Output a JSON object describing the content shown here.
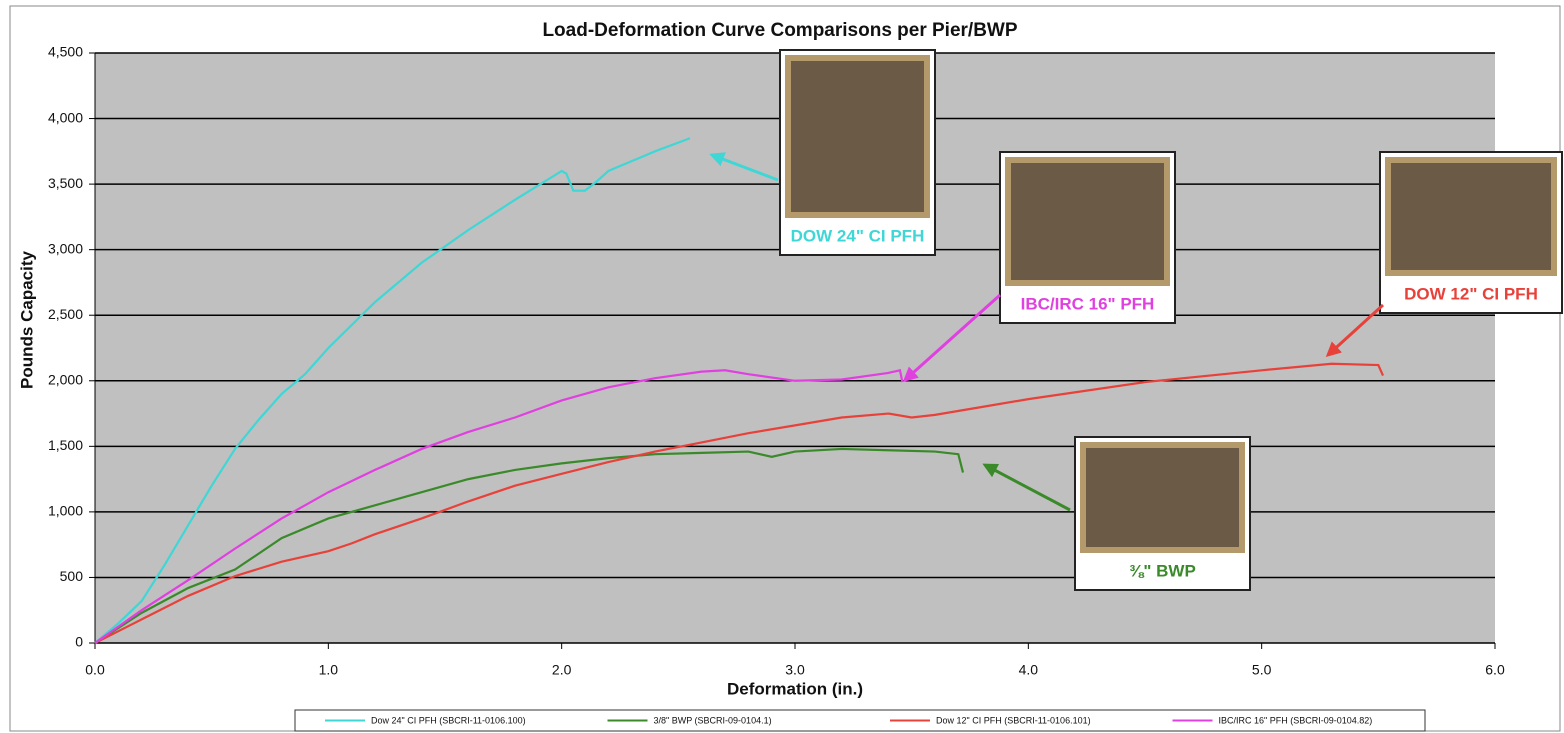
{
  "chart_data": {
    "type": "line",
    "title": "Load-Deformation Curve Comparisons per Pier/BWP",
    "x_label": "Deformation (in.)",
    "y_label": "Pounds Capacity",
    "xlim": [
      0,
      6
    ],
    "xticks": [
      {
        "value": 0,
        "label": "0.0"
      },
      {
        "value": 1,
        "label": "1.0"
      },
      {
        "value": 2,
        "label": "2.0"
      },
      {
        "value": 3,
        "label": "3.0"
      },
      {
        "value": 4,
        "label": "4.0"
      },
      {
        "value": 5,
        "label": "5.0"
      },
      {
        "value": 6,
        "label": "6.0"
      }
    ],
    "ylim": [
      0,
      4500
    ],
    "yticks": [
      0,
      500,
      {
        "value": 1000,
        "label": "1,000"
      },
      {
        "value": 1500,
        "label": "1,500"
      },
      {
        "value": 2000,
        "label": "2,000"
      },
      {
        "value": 2500,
        "label": "2,500"
      },
      {
        "value": 3000,
        "label": "3,000"
      },
      {
        "value": 3500,
        "label": "3,500"
      },
      {
        "value": 4000,
        "label": "4,000"
      },
      {
        "value": 4500,
        "label": "4,500"
      }
    ],
    "grid": true,
    "legend": "bottom",
    "series": [
      {
        "name": "Dow 24\" CI PFH (SBCRI-11-0106.100)",
        "color": "#3fd6d6",
        "x": [
          0,
          0.1,
          0.2,
          0.3,
          0.4,
          0.5,
          0.6,
          0.7,
          0.8,
          0.9,
          1.0,
          1.2,
          1.4,
          1.6,
          1.8,
          2.0,
          2.02,
          2.05,
          2.1,
          2.15,
          2.2,
          2.4,
          2.55
        ],
        "values": [
          0,
          150,
          320,
          600,
          900,
          1200,
          1480,
          1700,
          1900,
          2050,
          2250,
          2600,
          2900,
          3150,
          3380,
          3600,
          3580,
          3450,
          3450,
          3520,
          3600,
          3750,
          3850
        ]
      },
      {
        "name": "3/8\" BWP (SBCRI-09-0104.1)",
        "color": "#3a8a2a",
        "x": [
          0,
          0.2,
          0.4,
          0.6,
          0.8,
          1.0,
          1.2,
          1.4,
          1.6,
          1.8,
          2.0,
          2.2,
          2.4,
          2.6,
          2.8,
          2.9,
          3.0,
          3.2,
          3.4,
          3.6,
          3.7,
          3.72
        ],
        "values": [
          0,
          230,
          420,
          560,
          800,
          950,
          1050,
          1150,
          1250,
          1320,
          1370,
          1410,
          1440,
          1450,
          1460,
          1420,
          1460,
          1480,
          1470,
          1460,
          1440,
          1300
        ]
      },
      {
        "name": "Dow 12\" CI PFH (SBCRI-11-0106.101)",
        "color": "#e8413a",
        "x": [
          0,
          0.2,
          0.4,
          0.6,
          0.8,
          1.0,
          1.1,
          1.2,
          1.4,
          1.6,
          1.8,
          2.0,
          2.2,
          2.4,
          2.6,
          2.8,
          3.0,
          3.2,
          3.4,
          3.5,
          3.6,
          3.8,
          4.0,
          4.5,
          5.0,
          5.3,
          5.5,
          5.52
        ],
        "values": [
          0,
          180,
          360,
          510,
          620,
          700,
          760,
          830,
          950,
          1080,
          1200,
          1290,
          1380,
          1460,
          1530,
          1600,
          1660,
          1720,
          1750,
          1720,
          1740,
          1800,
          1860,
          1990,
          2080,
          2130,
          2120,
          2040
        ]
      },
      {
        "name": "IBC/IRC 16\" PFH (SBCRI-09-0104.82)",
        "color": "#e040e0",
        "x": [
          0,
          0.2,
          0.4,
          0.6,
          0.8,
          1.0,
          1.2,
          1.4,
          1.6,
          1.8,
          2.0,
          2.2,
          2.4,
          2.6,
          2.7,
          2.8,
          3.0,
          3.2,
          3.4,
          3.45,
          3.46
        ],
        "values": [
          0,
          250,
          480,
          720,
          950,
          1150,
          1320,
          1480,
          1610,
          1720,
          1850,
          1950,
          2020,
          2070,
          2080,
          2050,
          2000,
          2010,
          2060,
          2080,
          1990
        ]
      }
    ],
    "annotations": [
      {
        "text": "DOW 24\" CI PFH",
        "color": "#3fd6d6"
      },
      {
        "text": "IBC/IRC 16\" PFH",
        "color": "#e040e0"
      },
      {
        "text": "DOW 12\" CI PFH",
        "color": "#e8413a"
      },
      {
        "text": "⅜\" BWP",
        "color": "#3a8a2a"
      }
    ]
  }
}
